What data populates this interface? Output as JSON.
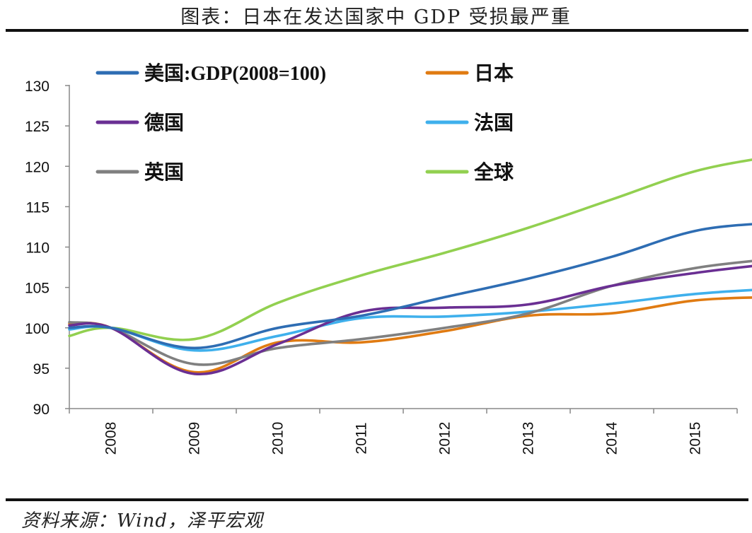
{
  "title": "图表：日本在发达国家中 GDP 受损最严重",
  "source": "资料来源：Wind，泽平宏观",
  "chart_data": {
    "type": "line",
    "title": "图表：日本在发达国家中 GDP 受损最严重",
    "xlabel": "",
    "ylabel": "",
    "x": [
      2007.5,
      2008.0,
      2009.0,
      2010.0,
      2011.0,
      2012.0,
      2013.0,
      2014.0,
      2015.0,
      2015.9
    ],
    "x_ticks": [
      "2008",
      "2009",
      "2010",
      "2011",
      "2012",
      "2013",
      "2014",
      "2015"
    ],
    "ylim": [
      90,
      130
    ],
    "y_ticks": [
      "90",
      "95",
      "100",
      "105",
      "110",
      "115",
      "120",
      "125",
      "130"
    ],
    "grid": false,
    "legend_position": "top",
    "series": [
      {
        "name": "美国:GDP(2008=100)",
        "color": "#2e6db3",
        "values": [
          100.0,
          100.0,
          97.5,
          100.0,
          101.5,
          103.8,
          106.1,
          108.8,
          112.0,
          113.0
        ]
      },
      {
        "name": "日本",
        "color": "#e07b12",
        "values": [
          100.5,
          100.0,
          94.5,
          98.2,
          98.2,
          99.6,
          101.5,
          101.8,
          103.4,
          103.8
        ]
      },
      {
        "name": "德国",
        "color": "#6a2f93",
        "values": [
          100.3,
          100.0,
          94.3,
          98.0,
          102.0,
          102.5,
          102.9,
          105.2,
          106.8,
          107.9
        ]
      },
      {
        "name": "法国",
        "color": "#3fb0ec",
        "values": [
          99.8,
          100.0,
          97.2,
          99.0,
          101.2,
          101.4,
          102.0,
          103.0,
          104.2,
          104.8
        ]
      },
      {
        "name": "英国",
        "color": "#808080",
        "values": [
          100.7,
          100.0,
          95.5,
          97.5,
          98.6,
          100.0,
          101.8,
          105.2,
          107.4,
          108.5
        ]
      },
      {
        "name": "全球",
        "color": "#92d050",
        "values": [
          99.0,
          100.0,
          98.6,
          103.1,
          106.5,
          109.3,
          112.4,
          115.9,
          119.4,
          121.2
        ]
      }
    ]
  }
}
